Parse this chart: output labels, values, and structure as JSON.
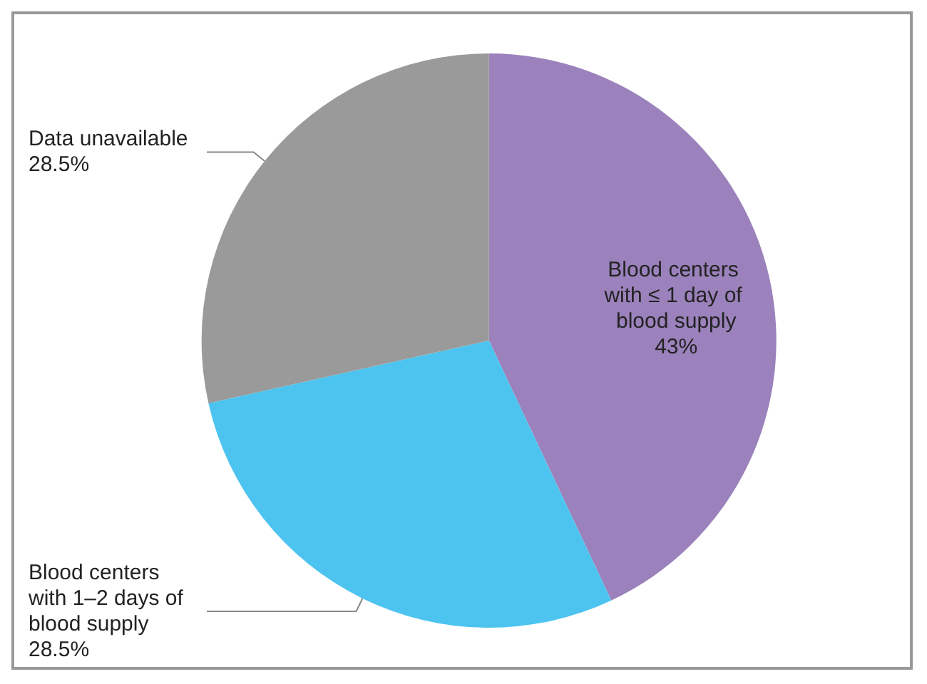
{
  "chart_data": {
    "type": "pie",
    "categories": [
      "Blood centers with ≤ 1 day of blood supply",
      "Blood centers with 1–2 days of blood supply",
      "Data unavailable"
    ],
    "values": [
      43,
      28.5,
      28.5
    ],
    "value_labels": [
      "43%",
      "28.5%",
      "28.5%"
    ],
    "colors": [
      "#9b82bc",
      "#4dc4ef",
      "#9a9a9a"
    ],
    "legend": false
  }
}
